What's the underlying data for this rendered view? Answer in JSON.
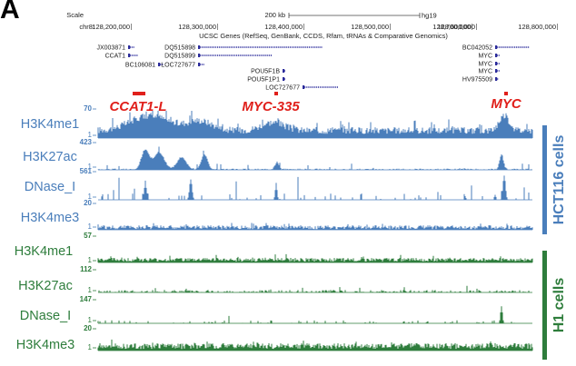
{
  "panel_letter": "A",
  "browser": {
    "scale_label": "Scale",
    "scale_value": "200 kb",
    "assembly": "hg19",
    "chrom_label": "chr8:",
    "coordinates": [
      "128,200,000",
      "128,300,000",
      "128,400,000",
      "128,500,000",
      "128,600,000",
      "128,700,000",
      "128,800,000"
    ],
    "track_title": "UCSC Genes (RefSeq, GenBank, CCDS, Rfam, tRNAs & Comparative Genomics)"
  },
  "genes": [
    {
      "name": "JX003871",
      "strand": "+"
    },
    {
      "name": "CCAT1",
      "strand": "-"
    },
    {
      "name": "BC106081",
      "strand": "-"
    },
    {
      "name": "DQ515898",
      "strand": "+"
    },
    {
      "name": "DQ515899",
      "strand": "+"
    },
    {
      "name": "LOC727677",
      "strand": "+"
    },
    {
      "name": "POU5F1B",
      "strand": "+"
    },
    {
      "name": "POU5F1P1",
      "strand": "+"
    },
    {
      "name": "LOC727677",
      "strand": "+"
    },
    {
      "name": "BC042052",
      "strand": "+"
    },
    {
      "name": "MYC",
      "strand": "+"
    },
    {
      "name": "MYC",
      "strand": "+"
    },
    {
      "name": "MYC",
      "strand": "+"
    },
    {
      "name": "HV975509",
      "strand": "+"
    }
  ],
  "regions": [
    {
      "label": "CCAT1-L",
      "color": "#e0201b"
    },
    {
      "label": "MYC-335",
      "color": "#e0201b"
    },
    {
      "label": "MYC",
      "color": "#e0201b"
    }
  ],
  "groups": [
    {
      "label": "HCT116 cells",
      "color": "#4a7ebb",
      "tracks": [
        {
          "name": "H3K4me1",
          "max": "70",
          "min": "1"
        },
        {
          "name": "H3K27ac",
          "max": "423",
          "min": "1"
        },
        {
          "name": "DNase_I",
          "max": "561",
          "min": "1"
        },
        {
          "name": "H3K4me3",
          "max": "20",
          "min": "1"
        }
      ]
    },
    {
      "label": "H1 cells",
      "color": "#2e7d3c",
      "tracks": [
        {
          "name": "H3K4me1",
          "max": "57",
          "min": "1"
        },
        {
          "name": "H3K27ac",
          "max": "112",
          "min": "1"
        },
        {
          "name": "DNase_I",
          "max": "147",
          "min": "1"
        },
        {
          "name": "H3K4me3",
          "max": "20",
          "min": "1"
        }
      ]
    }
  ]
}
